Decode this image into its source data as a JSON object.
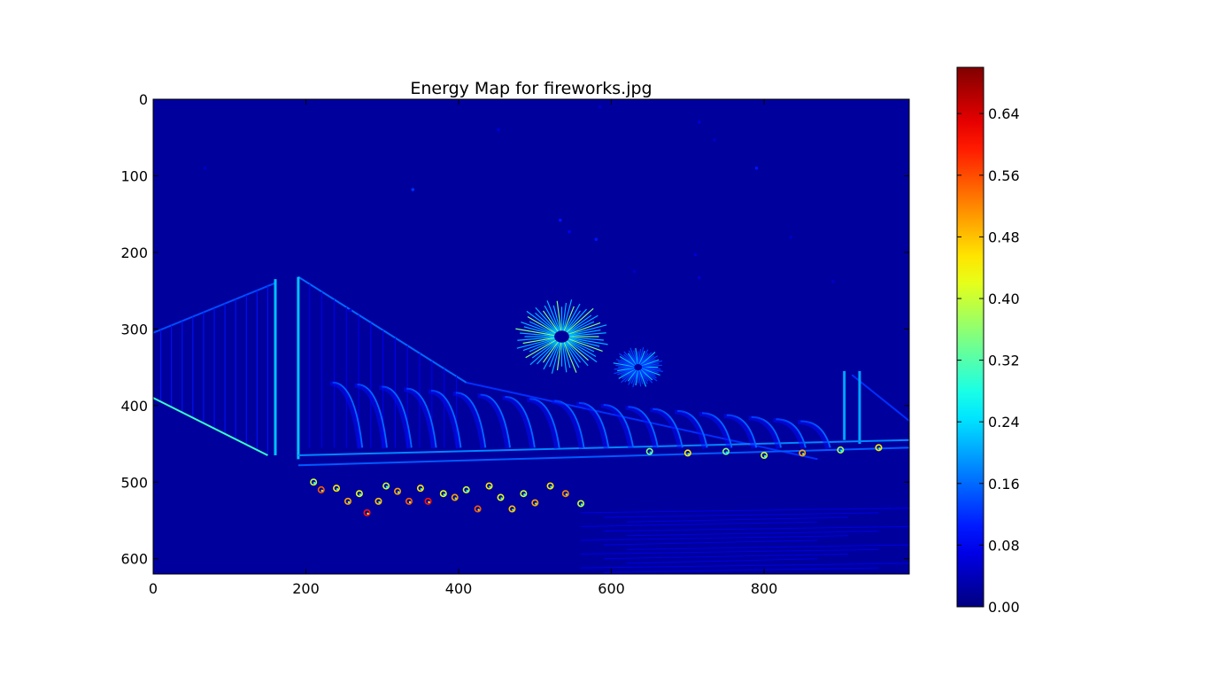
{
  "chart_data": {
    "type": "heatmap",
    "title": "Energy Map for fireworks.jpg",
    "xlabel": "",
    "ylabel": "",
    "xlim": [
      0,
      990
    ],
    "ylim": [
      620,
      0
    ],
    "xticks": [
      0,
      200,
      400,
      600,
      800
    ],
    "yticks": [
      0,
      100,
      200,
      300,
      400,
      500,
      600
    ],
    "colormap": "jet",
    "colorbar": {
      "range": [
        0.0,
        0.7
      ],
      "ticks": [
        0.0,
        0.08,
        0.16,
        0.24,
        0.32,
        0.4,
        0.48,
        0.56,
        0.64
      ],
      "tick_labels": [
        "0.00",
        "0.08",
        "0.16",
        "0.24",
        "0.32",
        "0.40",
        "0.48",
        "0.56",
        "0.64"
      ]
    },
    "background_value": 0.02,
    "features": {
      "bridge_cables": [
        {
          "from": [
            0,
            305
          ],
          "to": [
            160,
            240
          ],
          "value": 0.14
        },
        {
          "from": [
            190,
            232
          ],
          "to": [
            410,
            370
          ],
          "value": 0.16
        },
        {
          "from": [
            410,
            370
          ],
          "to": [
            870,
            470
          ],
          "value": 0.12
        },
        {
          "from": [
            915,
            360
          ],
          "to": [
            990,
            420
          ],
          "value": 0.12
        }
      ],
      "towers": [
        {
          "x": 160,
          "top": 235,
          "bottom": 465,
          "value": 0.22
        },
        {
          "x": 190,
          "top": 232,
          "bottom": 470,
          "value": 0.22
        },
        {
          "x": 905,
          "top": 355,
          "bottom": 445,
          "value": 0.2
        },
        {
          "x": 925,
          "top": 355,
          "bottom": 450,
          "value": 0.2
        }
      ],
      "deck_lines": [
        {
          "from": [
            190,
            465
          ],
          "to": [
            990,
            445
          ],
          "value": 0.18
        },
        {
          "from": [
            190,
            478
          ],
          "to": [
            990,
            455
          ],
          "value": 0.15
        },
        {
          "from": [
            0,
            390
          ],
          "to": [
            150,
            465
          ],
          "value": 0.3
        }
      ],
      "fireworks": [
        {
          "cx": 535,
          "cy": 310,
          "r": 65,
          "value": 0.35
        },
        {
          "cx": 635,
          "cy": 350,
          "r": 35,
          "value": 0.22
        }
      ],
      "arches": {
        "start_x": 235,
        "end_x": 880,
        "count": 20,
        "base_y": 455,
        "height": 85,
        "value": 0.16
      },
      "stars": [
        [
          340,
          118,
          0.12
        ],
        [
          533,
          158,
          0.1
        ],
        [
          580,
          183,
          0.1
        ],
        [
          545,
          173,
          0.08
        ],
        [
          715,
          30,
          0.06
        ],
        [
          790,
          90,
          0.1
        ],
        [
          452,
          40,
          0.06
        ],
        [
          585,
          10,
          0.05
        ],
        [
          710,
          203,
          0.06
        ],
        [
          715,
          233,
          0.06
        ],
        [
          630,
          225,
          0.05
        ],
        [
          68,
          90,
          0.05
        ],
        [
          258,
          276,
          0.06
        ],
        [
          890,
          238,
          0.05
        ],
        [
          735,
          53,
          0.05
        ],
        [
          835,
          180,
          0.05
        ]
      ],
      "hot_spots": [
        [
          210,
          500,
          0.4
        ],
        [
          220,
          510,
          0.55
        ],
        [
          240,
          508,
          0.45
        ],
        [
          255,
          525,
          0.5
        ],
        [
          270,
          515,
          0.42
        ],
        [
          280,
          540,
          0.6
        ],
        [
          295,
          525,
          0.48
        ],
        [
          305,
          505,
          0.4
        ],
        [
          320,
          512,
          0.5
        ],
        [
          335,
          525,
          0.55
        ],
        [
          350,
          508,
          0.45
        ],
        [
          360,
          525,
          0.6
        ],
        [
          380,
          515,
          0.42
        ],
        [
          395,
          520,
          0.5
        ],
        [
          410,
          510,
          0.4
        ],
        [
          425,
          535,
          0.55
        ],
        [
          440,
          505,
          0.45
        ],
        [
          455,
          520,
          0.42
        ],
        [
          470,
          535,
          0.48
        ],
        [
          485,
          515,
          0.4
        ],
        [
          500,
          527,
          0.5
        ],
        [
          520,
          505,
          0.45
        ],
        [
          540,
          515,
          0.52
        ],
        [
          560,
          528,
          0.4
        ],
        [
          650,
          460,
          0.35
        ],
        [
          700,
          462,
          0.45
        ],
        [
          750,
          460,
          0.35
        ],
        [
          800,
          465,
          0.4
        ],
        [
          850,
          462,
          0.5
        ],
        [
          900,
          458,
          0.38
        ],
        [
          950,
          455,
          0.45
        ]
      ]
    }
  }
}
